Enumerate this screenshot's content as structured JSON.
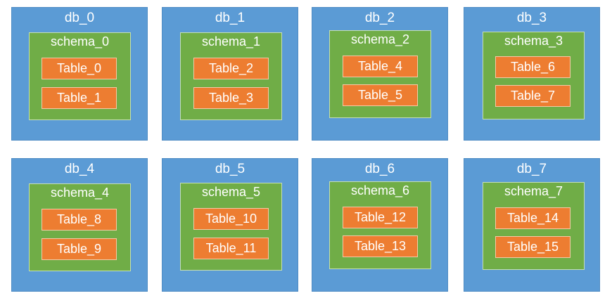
{
  "colors": {
    "db": "#5b9bd5",
    "schema": "#70ad47",
    "table": "#ed7d31",
    "text": "#ffffff"
  },
  "databases": [
    {
      "name": "db_0",
      "schema": {
        "name": "schema_0",
        "tables": [
          "Table_0",
          "Table_1"
        ]
      }
    },
    {
      "name": "db_1",
      "schema": {
        "name": "schema_1",
        "tables": [
          "Table_2",
          "Table_3"
        ]
      }
    },
    {
      "name": "db_2",
      "schema": {
        "name": "schema_2",
        "tables": [
          "Table_4",
          "Table_5"
        ]
      }
    },
    {
      "name": "db_3",
      "schema": {
        "name": "schema_3",
        "tables": [
          "Table_6",
          "Table_7"
        ]
      }
    },
    {
      "name": "db_4",
      "schema": {
        "name": "schema_4",
        "tables": [
          "Table_8",
          "Table_9"
        ]
      }
    },
    {
      "name": "db_5",
      "schema": {
        "name": "schema_5",
        "tables": [
          "Table_10",
          "Table_11"
        ]
      }
    },
    {
      "name": "db_6",
      "schema": {
        "name": "schema_6",
        "tables": [
          "Table_12",
          "Table_13"
        ]
      }
    },
    {
      "name": "db_7",
      "schema": {
        "name": "schema_7",
        "tables": [
          "Table_14",
          "Table_15"
        ]
      }
    }
  ]
}
